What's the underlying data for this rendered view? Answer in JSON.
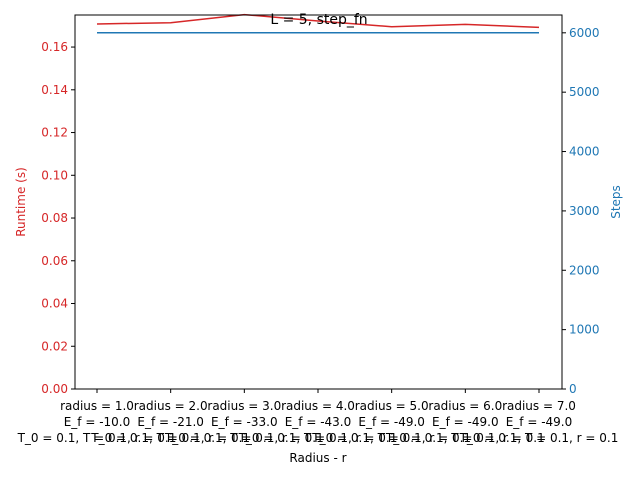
{
  "chart_data": {
    "type": "line",
    "title": "L = 5, step_fn",
    "xlabel": "Radius - r",
    "ylabel_left": "Runtime (s)",
    "ylabel_right": "Steps",
    "categories": [
      [
        "radius = 1.0",
        "E_f = -10.0",
        "T_0 = 0.1, T = 0.1, r = 0.1"
      ],
      [
        "radius = 2.0",
        "E_f = -21.0",
        "T_0 = 0.1, T = 0.1, r = 0.1"
      ],
      [
        "radius = 3.0",
        "E_f = -33.0",
        "T_0 = 0.1, T = 0.1, r = 0.1"
      ],
      [
        "radius = 4.0",
        "E_f = -43.0",
        "T_0 = 0.1, T = 0.1, r = 0.1"
      ],
      [
        "radius = 5.0",
        "E_f = -49.0",
        "T_0 = 0.1, T = 0.1, r = 0.1"
      ],
      [
        "radius = 6.0",
        "E_f = -49.0",
        "T_0 = 0.1, T = 0.1, r = 0.1"
      ],
      [
        "radius = 7.0",
        "E_f = -49.0",
        "T_0 = 0.1, T = 0.1, r = 0.1"
      ]
    ],
    "series": [
      {
        "axis": "left",
        "color": "#d62728",
        "values": [
          0.1708,
          0.1714,
          0.1752,
          0.1722,
          0.1695,
          0.1706,
          0.1692
        ]
      },
      {
        "axis": "right",
        "color": "#1f77b4",
        "values": [
          6000,
          6000,
          6000,
          6000,
          6000,
          6000,
          6000
        ]
      }
    ],
    "ylim_left": [
      0,
      0.175
    ],
    "ylim_right": [
      0,
      6300
    ],
    "yticks_left": [
      "0.00",
      "0.02",
      "0.04",
      "0.06",
      "0.08",
      "0.10",
      "0.12",
      "0.14",
      "0.16"
    ],
    "yticks_right": [
      "0",
      "1000",
      "2000",
      "3000",
      "4000",
      "5000",
      "6000"
    ],
    "grid": false,
    "legend": "none"
  }
}
